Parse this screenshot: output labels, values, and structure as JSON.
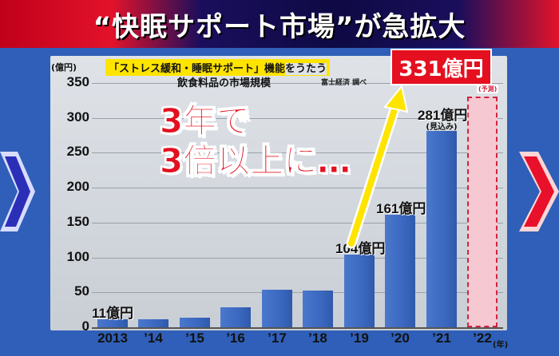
{
  "banner": {
    "title": "“快眠サポート市場”が急拡大"
  },
  "header": {
    "subtitle_line1": "「ストレス緩和・睡眠サポート」機能",
    "subtitle_line1_suffix": "をうたう",
    "subtitle_line2": "飲食料品の市場規模",
    "source": "富士経済 調べ"
  },
  "callout": {
    "value_label": "331億円",
    "forecast_note": "(予測)"
  },
  "annotation": {
    "line1": "3年で",
    "line2": "3倍以上に…"
  },
  "colors": {
    "bar": "#3b68c0",
    "forecast_fill": "#f6c9d2",
    "forecast_border": "#d2233e",
    "accent_red": "#e5101f",
    "banner_navy": "#0e0a44"
  },
  "chart_data": {
    "type": "bar",
    "title": "「ストレス緩和・睡眠サポート」機能をうたう飲食料品の市場規模",
    "ylabel": "(億円)",
    "xlabel": "(年)",
    "ylim": [
      0,
      350
    ],
    "yticks": [
      0,
      50,
      100,
      150,
      200,
      250,
      300,
      350
    ],
    "grid": true,
    "categories": [
      "2013",
      "’14",
      "’15",
      "’16",
      "’17",
      "’18",
      "’19",
      "’20",
      "’21",
      "’22"
    ],
    "values": [
      11,
      12,
      14,
      29,
      54,
      53,
      104,
      161,
      281,
      331
    ],
    "forecast": [
      false,
      false,
      false,
      false,
      false,
      false,
      false,
      false,
      false,
      true
    ],
    "data_labels": [
      "11億円",
      "",
      "",
      "",
      "",
      "",
      "104億円",
      "161億円",
      "281億円",
      ""
    ],
    "data_notes": [
      "",
      "",
      "",
      "",
      "",
      "",
      "",
      "",
      "(見込み)",
      ""
    ]
  }
}
